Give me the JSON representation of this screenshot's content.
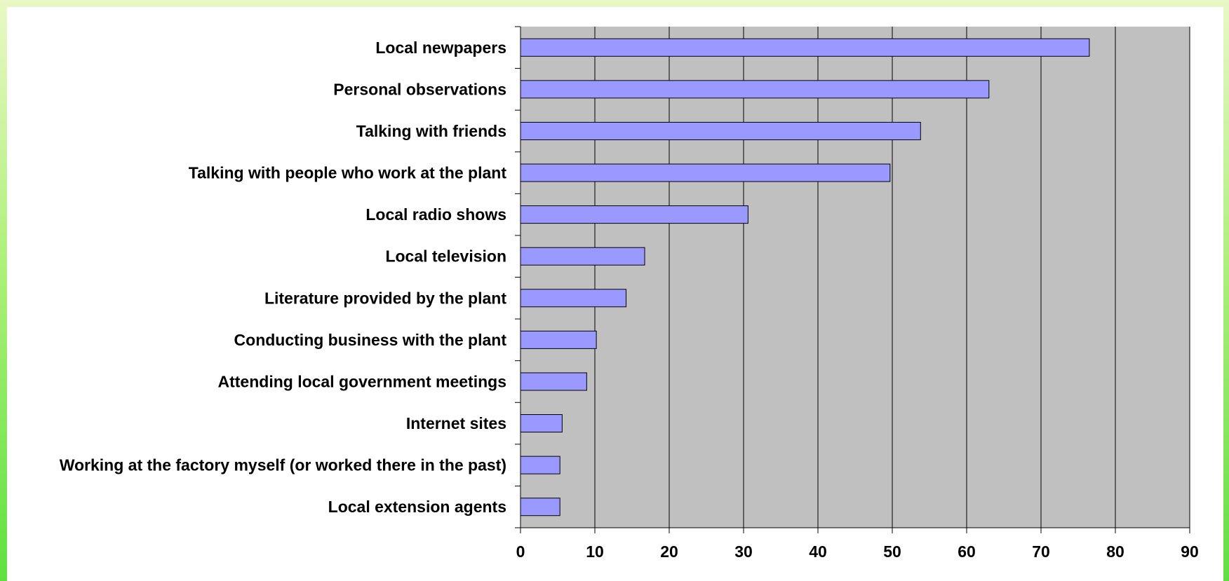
{
  "chart_data": {
    "type": "bar",
    "orientation": "horizontal",
    "title": "",
    "xlabel": "",
    "ylabel": "",
    "categories": [
      "Local newpapers",
      "Personal observations",
      "Talking with friends",
      "Talking with people who work at the plant",
      "Local radio shows",
      "Local television",
      "Literature provided by the plant",
      "Conducting business with the plant",
      "Attending local government meetings",
      "Internet sites",
      "Working at the factory myself (or worked there in the past)",
      "Local extension agents"
    ],
    "values": [
      76.5,
      63,
      53.8,
      49.7,
      30.6,
      16.7,
      14.2,
      10.2,
      8.9,
      5.6,
      5.3,
      5.3
    ],
    "xlim": [
      0,
      90
    ],
    "x_ticks": [
      "0",
      "10",
      "20",
      "30",
      "40",
      "50",
      "60",
      "70",
      "80",
      "90"
    ],
    "grid": true,
    "legend": "none",
    "colors": {
      "bar_fill": "#9999ff",
      "bar_stroke": "#000000",
      "plot_background": "#c0c0c0",
      "gridline": "#000000"
    }
  }
}
